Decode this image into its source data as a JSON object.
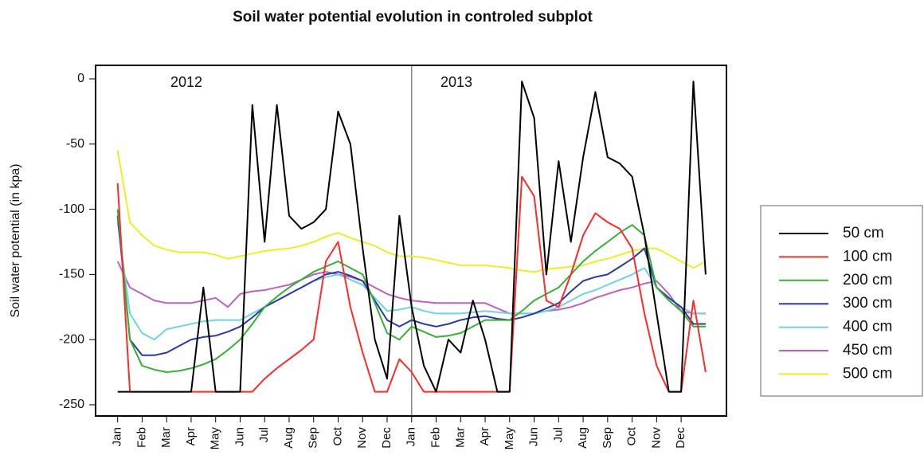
{
  "chart_data": {
    "type": "line",
    "title": "Soil water potential evolution in controled subplot",
    "y_label": "Soil water potential (in kpa)",
    "annotations": [
      "2012",
      "2013"
    ],
    "x": [
      0,
      0.5,
      1,
      1.5,
      2,
      2.5,
      3,
      3.5,
      4,
      4.5,
      5,
      5.5,
      6,
      6.5,
      7,
      7.5,
      8,
      8.5,
      9,
      9.5,
      10,
      10.5,
      11,
      11.5,
      12,
      12.5,
      13,
      13.5,
      14,
      14.5,
      15,
      15.5,
      16,
      16.5,
      17,
      17.5,
      18,
      18.5,
      19,
      19.5,
      20,
      20.5,
      21,
      21.5,
      22,
      22.5,
      23,
      23.5,
      24
    ],
    "xlim": [
      -0.9,
      24.85
    ],
    "xticks": [
      {
        "value": 0,
        "label": "Jan"
      },
      {
        "value": 1,
        "label": "Feb"
      },
      {
        "value": 2,
        "label": "Mar"
      },
      {
        "value": 3,
        "label": "Apr"
      },
      {
        "value": 4,
        "label": "May"
      },
      {
        "value": 5,
        "label": "Jun"
      },
      {
        "value": 6,
        "label": "Jul"
      },
      {
        "value": 7,
        "label": "Aug"
      },
      {
        "value": 8,
        "label": "Sep"
      },
      {
        "value": 9,
        "label": "Oct"
      },
      {
        "value": 10,
        "label": "Nov"
      },
      {
        "value": 11,
        "label": "Dec"
      },
      {
        "value": 12,
        "label": "Jan"
      },
      {
        "value": 13,
        "label": "Feb"
      },
      {
        "value": 14,
        "label": "Mar"
      },
      {
        "value": 15,
        "label": "Apr"
      },
      {
        "value": 16,
        "label": "May"
      },
      {
        "value": 17,
        "label": "Jun"
      },
      {
        "value": 18,
        "label": "Jul"
      },
      {
        "value": 19,
        "label": "Aug"
      },
      {
        "value": 20,
        "label": "Sep"
      },
      {
        "value": 21,
        "label": "Oct"
      },
      {
        "value": 22,
        "label": "Nov"
      },
      {
        "value": 23,
        "label": "Dec"
      }
    ],
    "ylim": [
      -258.6,
      10.4
    ],
    "yticks": [
      0,
      -50,
      -100,
      -150,
      -200,
      -250
    ],
    "legend": "right",
    "series": [
      {
        "name": "50 cm",
        "color": "#000000",
        "values": [
          -240,
          -240,
          -240,
          -240,
          -240,
          -240,
          -240,
          -160,
          -240,
          -240,
          -240,
          -20,
          -125,
          -20,
          -105,
          -115,
          -110,
          -100,
          -25,
          -50,
          -130,
          -200,
          -230,
          -105,
          -175,
          -220,
          -240,
          -200,
          -210,
          -170,
          -200,
          -240,
          -240,
          -2,
          -30,
          -150,
          -63,
          -125,
          -60,
          -10,
          -60,
          -65,
          -75,
          -120,
          -180,
          -240,
          -240,
          -2,
          -150
        ]
      },
      {
        "name": "100 cm",
        "color": "#ff2a2a",
        "values": [
          -80,
          -240,
          -240,
          -240,
          -240,
          -240,
          -240,
          -240,
          -240,
          -240,
          -240,
          -240,
          -230,
          -222,
          -215,
          -208,
          -200,
          -140,
          -125,
          -175,
          -210,
          -240,
          -240,
          -215,
          -225,
          -240,
          -240,
          -240,
          -240,
          -240,
          -240,
          -240,
          -240,
          -75,
          -90,
          -170,
          -175,
          -150,
          -120,
          -103,
          -110,
          -115,
          -130,
          -180,
          -220,
          -240,
          -240,
          -170,
          -225
        ]
      },
      {
        "name": "200 cm",
        "color": "#33b233",
        "values": [
          -100,
          -200,
          -220,
          -223,
          -225,
          -224,
          -222,
          -219,
          -215,
          -208,
          -200,
          -188,
          -175,
          -167,
          -160,
          -154,
          -148,
          -144,
          -140,
          -145,
          -150,
          -172,
          -195,
          -200,
          -190,
          -194,
          -198,
          -197,
          -195,
          -190,
          -185,
          -185,
          -185,
          -178,
          -170,
          -165,
          -160,
          -150,
          -140,
          -132,
          -125,
          -118,
          -112,
          -120,
          -160,
          -170,
          -178,
          -190,
          -190
        ]
      },
      {
        "name": "300 cm",
        "color": "#2a3aa8",
        "values": [
          -105,
          -200,
          -212,
          -212,
          -210,
          -205,
          -200,
          -198,
          -197,
          -194,
          -190,
          -183,
          -175,
          -170,
          -165,
          -160,
          -155,
          -150,
          -148,
          -151,
          -155,
          -170,
          -185,
          -190,
          -185,
          -188,
          -190,
          -188,
          -185,
          -183,
          -182,
          -184,
          -185,
          -183,
          -180,
          -176,
          -172,
          -163,
          -155,
          -152,
          -150,
          -144,
          -138,
          -130,
          -160,
          -168,
          -175,
          -188,
          -188
        ]
      },
      {
        "name": "400 cm",
        "color": "#6fd3e0",
        "values": [
          -110,
          -180,
          -195,
          -200,
          -192,
          -190,
          -188,
          -186,
          -185,
          -185,
          -185,
          -180,
          -175,
          -170,
          -165,
          -160,
          -155,
          -152,
          -150,
          -154,
          -158,
          -168,
          -178,
          -177,
          -175,
          -178,
          -180,
          -180,
          -180,
          -179,
          -178,
          -179,
          -180,
          -180,
          -180,
          -178,
          -175,
          -170,
          -165,
          -162,
          -158,
          -154,
          -150,
          -145,
          -160,
          -168,
          -175,
          -180,
          -180
        ]
      },
      {
        "name": "450 cm",
        "color": "#c060c0",
        "values": [
          -140,
          -160,
          -165,
          -170,
          -172,
          -172,
          -172,
          -170,
          -168,
          -175,
          -165,
          -163,
          -162,
          -160,
          -158,
          -154,
          -150,
          -148,
          -150,
          -152,
          -155,
          -160,
          -165,
          -168,
          -170,
          -171,
          -172,
          -172,
          -172,
          -172,
          -172,
          -176,
          -180,
          -180,
          -180,
          -178,
          -177,
          -175,
          -172,
          -168,
          -165,
          -162,
          -160,
          -157,
          -155,
          -165,
          -178,
          -180,
          -180
        ]
      },
      {
        "name": "500 cm",
        "color": "#eeee22",
        "values": [
          -55,
          -110,
          -120,
          -128,
          -131,
          -133,
          -133,
          -133,
          -135,
          -138,
          -136,
          -134,
          -132,
          -131,
          -130,
          -128,
          -125,
          -121,
          -118,
          -122,
          -125,
          -128,
          -133,
          -136,
          -136,
          -137,
          -139,
          -141,
          -143,
          -143,
          -143,
          -144,
          -145,
          -147,
          -148,
          -146,
          -145,
          -144,
          -143,
          -140,
          -138,
          -135,
          -132,
          -130,
          -130,
          -135,
          -140,
          -145,
          -140
        ]
      }
    ]
  }
}
